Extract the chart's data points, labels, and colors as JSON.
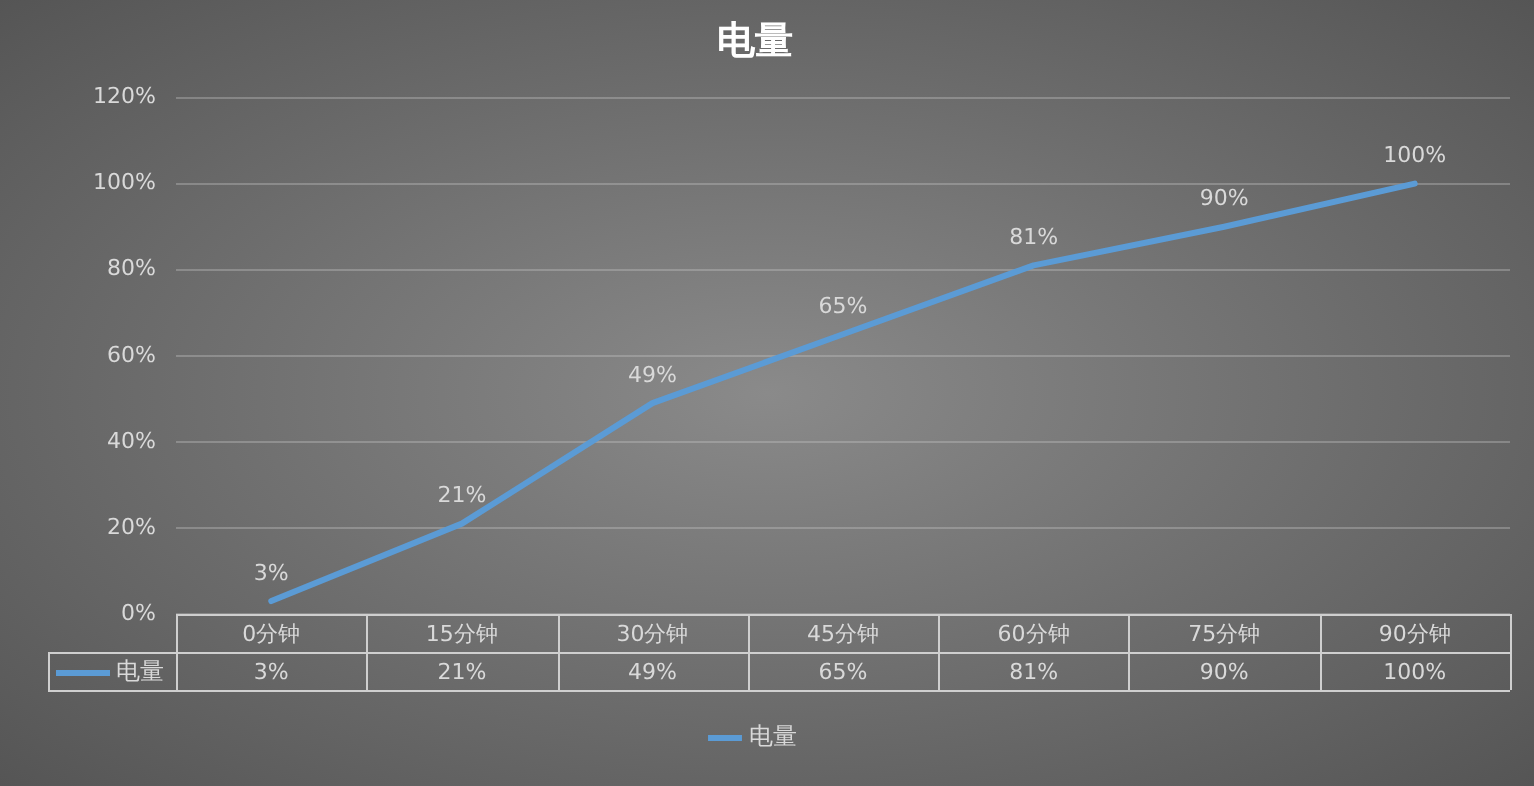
{
  "chart_data": {
    "type": "line",
    "title": "电量",
    "categories": [
      "0分钟",
      "15分钟",
      "30分钟",
      "45分钟",
      "60分钟",
      "75分钟",
      "90分钟"
    ],
    "series": [
      {
        "name": "电量",
        "color": "#5b9bd5",
        "values": [
          3,
          21,
          49,
          65,
          81,
          90,
          100
        ],
        "value_labels": [
          "3%",
          "21%",
          "49%",
          "65%",
          "81%",
          "90%",
          "100%"
        ]
      }
    ],
    "ylim": [
      0,
      120
    ],
    "yticks": [
      {
        "value": 0,
        "label": "0%"
      },
      {
        "value": 20,
        "label": "20%"
      },
      {
        "value": 40,
        "label": "40%"
      },
      {
        "value": 60,
        "label": "60%"
      },
      {
        "value": 80,
        "label": "80%"
      },
      {
        "value": 100,
        "label": "100%"
      },
      {
        "value": 120,
        "label": "120%"
      }
    ],
    "grid": "y",
    "legend": "bottom",
    "marker": "none",
    "line_style": "solid"
  }
}
